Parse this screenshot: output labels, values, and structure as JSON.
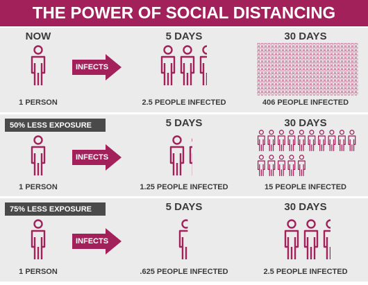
{
  "header": {
    "title": "THE POWER OF SOCIAL DISTANCING"
  },
  "rows": [
    {
      "start_heading": "NOW",
      "start": "1 PERSON",
      "action": "INFECTS",
      "day5_heading": "5 DAYS",
      "day5": "2.5 PEOPLE INFECTED",
      "day30_heading": "30 DAYS",
      "day30": "406 PEOPLE INFECTED"
    },
    {
      "tag": "50% LESS EXPOSURE",
      "start": "1 PERSON",
      "action": "INFECTS",
      "day5_heading": "5 DAYS",
      "day5": "1.25 PEOPLE INFECTED",
      "day30_heading": "30 DAYS",
      "day30": "15 PEOPLE INFECTED"
    },
    {
      "tag": "75% LESS EXPOSURE",
      "start": "1 PERSON",
      "action": "INFECTS",
      "day5_heading": "5 DAYS",
      "day5": ".625 PEOPLE INFECTED",
      "day30_heading": "30 DAYS",
      "day30": "2.5 PEOPLE INFECTED"
    }
  ]
}
